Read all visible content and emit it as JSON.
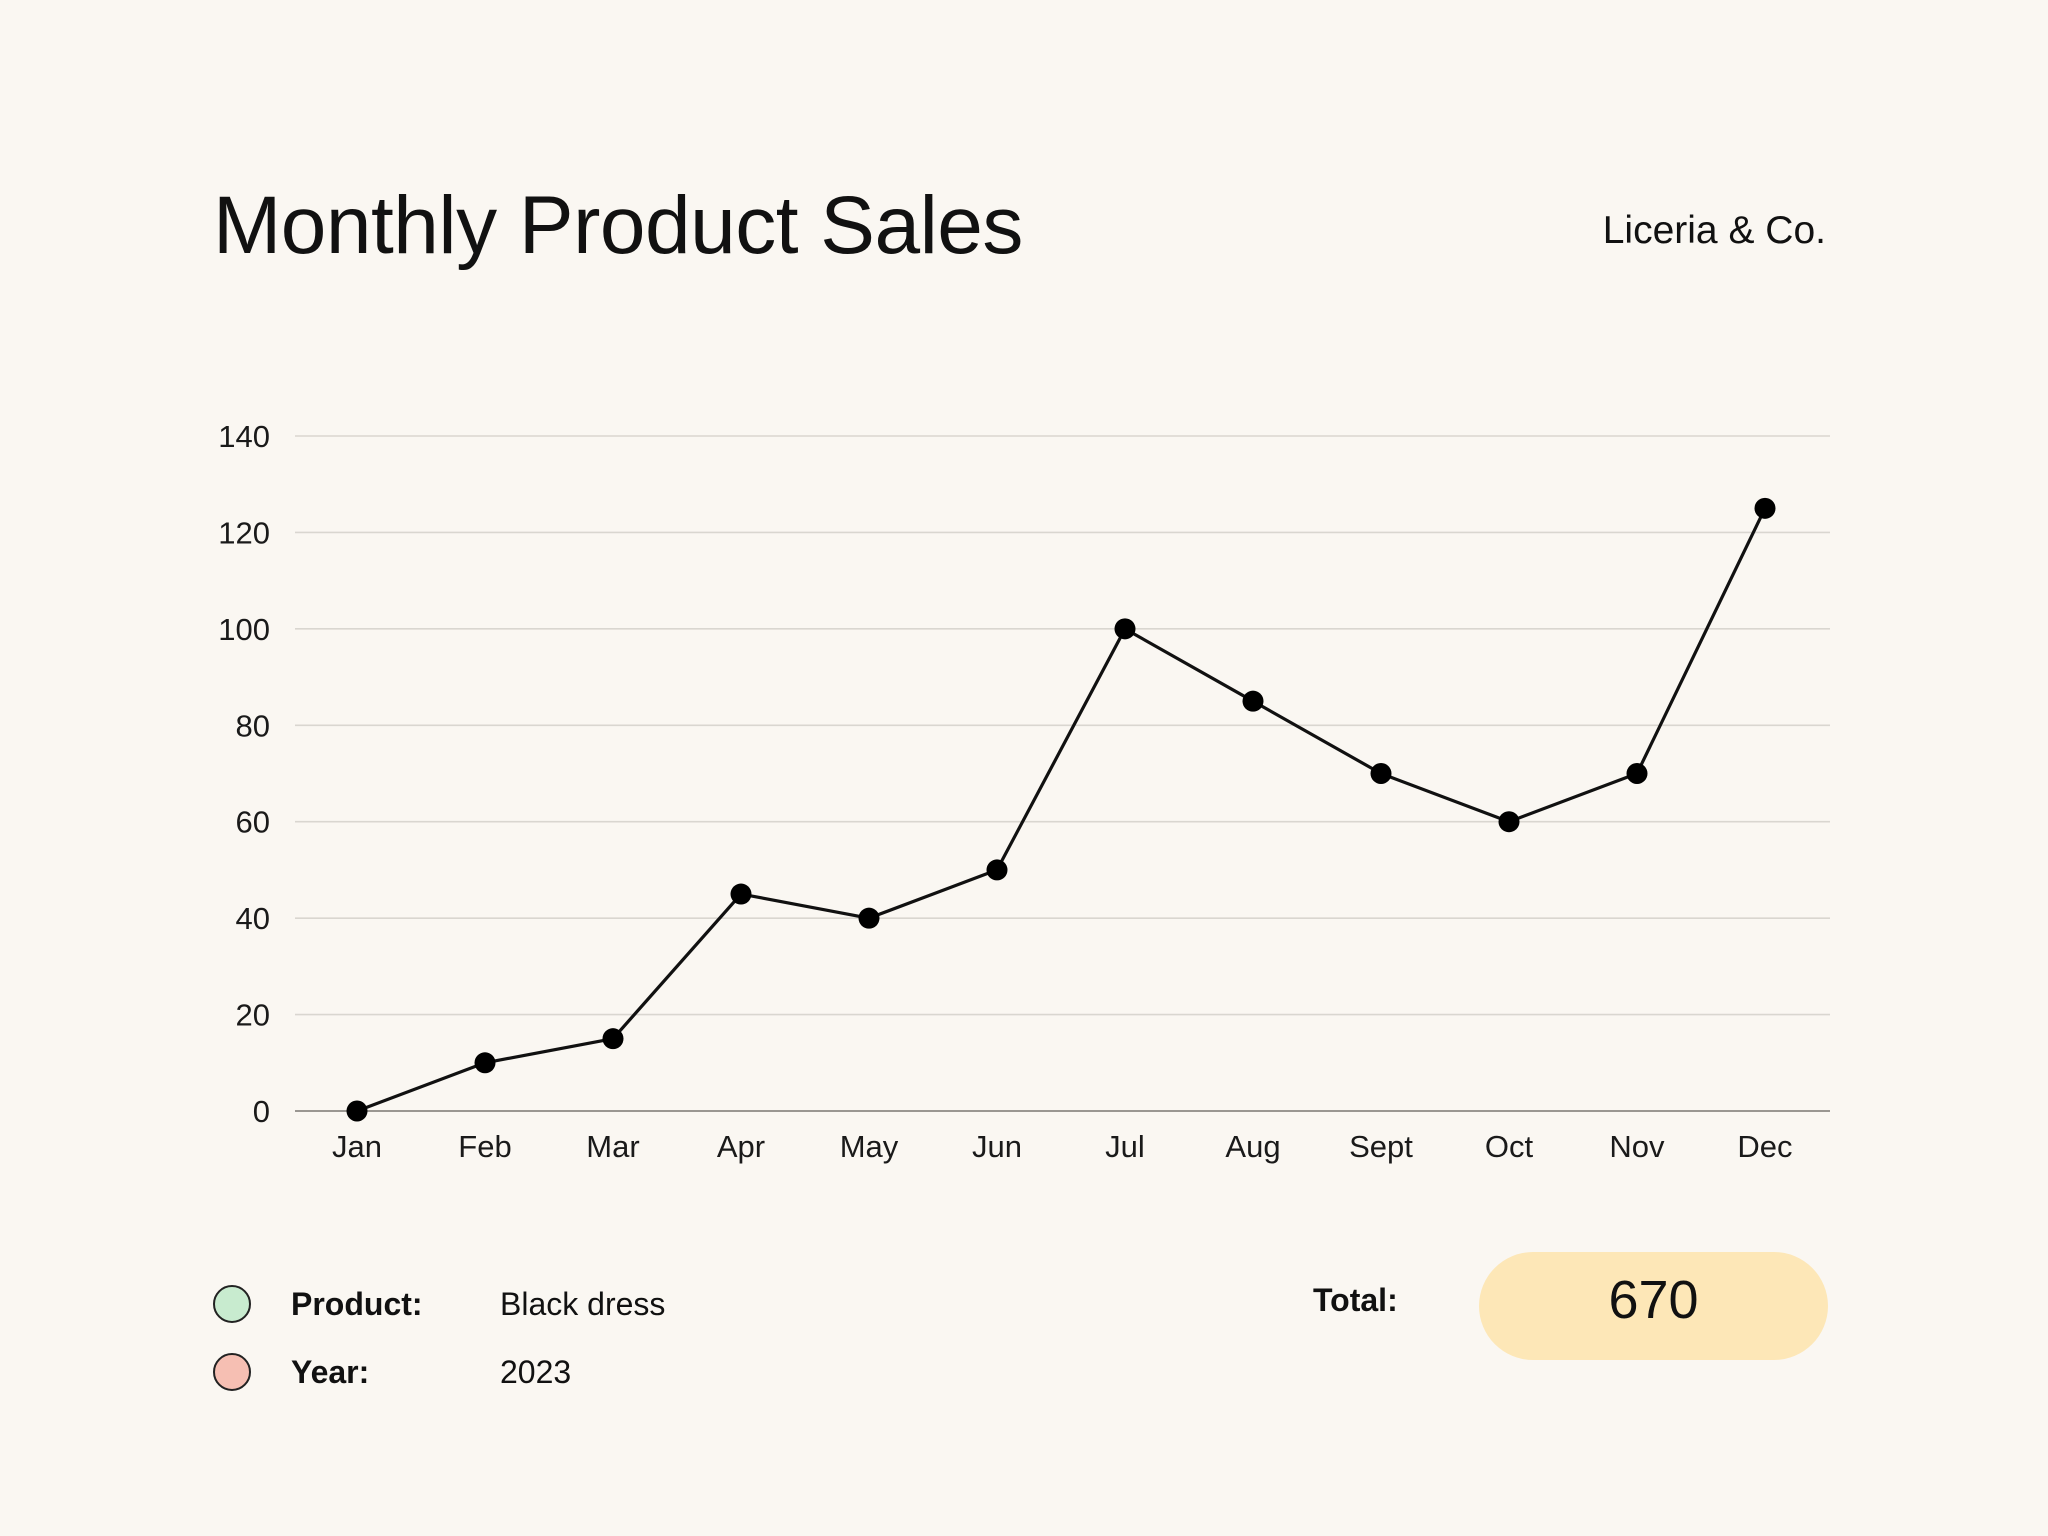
{
  "header": {
    "title": "Monthly Product Sales",
    "brand": "Liceria & Co."
  },
  "chart_data": {
    "type": "line",
    "title": "Monthly Product Sales",
    "xlabel": "",
    "ylabel": "",
    "categories": [
      "Jan",
      "Feb",
      "Mar",
      "Apr",
      "May",
      "Jun",
      "Jul",
      "Aug",
      "Sept",
      "Oct",
      "Nov",
      "Dec"
    ],
    "values": [
      0,
      10,
      15,
      45,
      40,
      50,
      100,
      85,
      70,
      60,
      70,
      125
    ],
    "ylim": [
      0,
      140
    ],
    "yticks": [
      0,
      20,
      40,
      60,
      80,
      100,
      120,
      140
    ],
    "grid": true,
    "line_color": "#111111",
    "marker_color": "#000000",
    "grid_color": "#d9d6d0"
  },
  "legend": {
    "items": [
      {
        "label": "Product:",
        "value": "Black dress",
        "color": "#c8ebcf"
      },
      {
        "label": "Year:",
        "value": "2023",
        "color": "#f6bfb3"
      }
    ]
  },
  "total": {
    "label": "Total:",
    "value": "670",
    "pill_color": "#fde7b7"
  }
}
